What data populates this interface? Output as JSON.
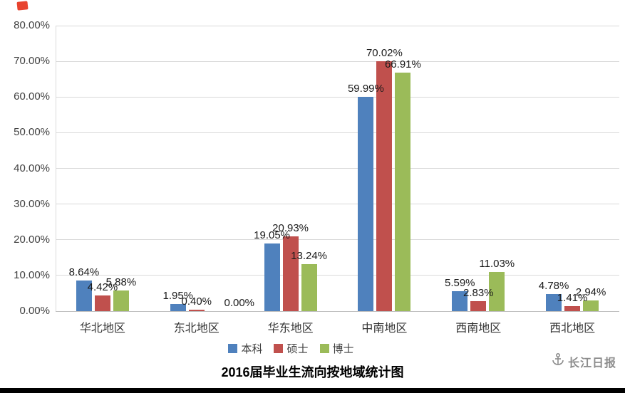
{
  "watermark": {
    "text": "长江日报",
    "icon": "anchor-icon"
  },
  "chart_data": {
    "type": "bar",
    "title": "2016届毕业生流向按地域统计图",
    "categories": [
      "华北地区",
      "东北地区",
      "华东地区",
      "中南地区",
      "西南地区",
      "西北地区"
    ],
    "series": [
      {
        "name": "本科",
        "color": "#4f81bd",
        "values": [
          8.64,
          1.95,
          19.05,
          59.99,
          5.59,
          4.78
        ]
      },
      {
        "name": "硕士",
        "color": "#c0504d",
        "values": [
          4.42,
          0.4,
          20.93,
          70.02,
          2.83,
          1.41
        ]
      },
      {
        "name": "博士",
        "color": "#9bbb59",
        "values": [
          5.88,
          0.0,
          13.24,
          66.91,
          11.03,
          2.94
        ]
      }
    ],
    "ylim": [
      0,
      80
    ],
    "ytick_step": 10,
    "ytick_labels": [
      "0.00%",
      "10.00%",
      "20.00%",
      "30.00%",
      "40.00%",
      "50.00%",
      "60.00%",
      "70.00%",
      "80.00%"
    ],
    "value_label_suffix": "%",
    "grid": true,
    "legend_position": "bottom",
    "xlabel": "",
    "ylabel": ""
  }
}
